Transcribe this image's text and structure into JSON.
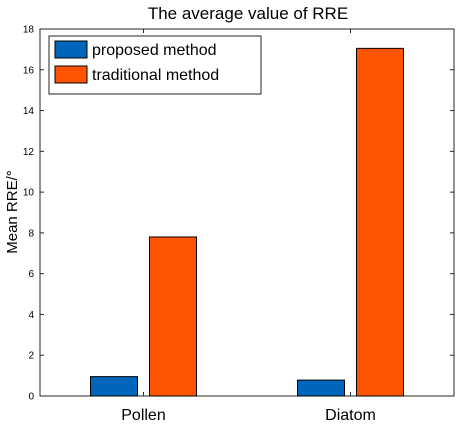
{
  "chart_data": {
    "type": "bar",
    "title": "The average value of RRE",
    "xlabel": "",
    "ylabel": "Mean RRE/°",
    "categories": [
      "Pollen",
      "Diatom"
    ],
    "series": [
      {
        "name": "proposed method",
        "color": "#0066bb",
        "values": [
          0.95,
          0.78
        ]
      },
      {
        "name": "traditional method",
        "color": "#ff5500",
        "values": [
          7.8,
          17.05
        ]
      }
    ],
    "ylim": [
      0,
      18
    ],
    "yticks": [
      0,
      2,
      4,
      6,
      8,
      10,
      12,
      14,
      16,
      18
    ],
    "grid": false,
    "legend_position": "top-left"
  }
}
